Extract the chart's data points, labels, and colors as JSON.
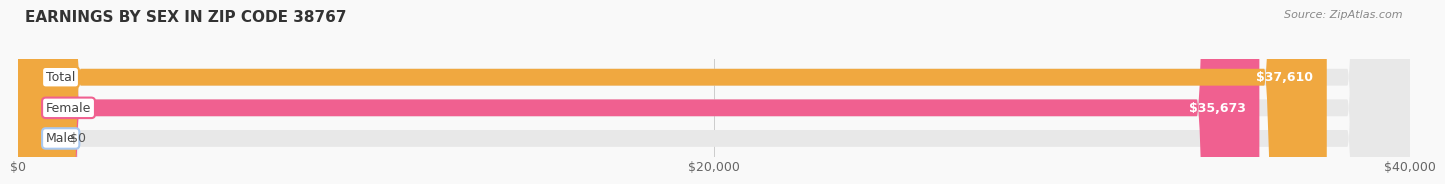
{
  "title": "EARNINGS BY SEX IN ZIP CODE 38767",
  "source": "Source: ZipAtlas.com",
  "categories": [
    "Male",
    "Female",
    "Total"
  ],
  "values": [
    0,
    35673,
    37610
  ],
  "bar_colors": [
    "#a8c8f0",
    "#f06090",
    "#f0a840"
  ],
  "bar_bg_color": "#e8e8e8",
  "xlim": [
    0,
    40000
  ],
  "xticks": [
    0,
    20000,
    40000
  ],
  "xtick_labels": [
    "$0",
    "$20,000",
    "$40,000"
  ],
  "value_labels": [
    "$0",
    "$35,673",
    "$37,610"
  ],
  "bar_height": 0.55,
  "title_fontsize": 11,
  "tick_fontsize": 9,
  "label_fontsize": 9,
  "value_fontsize": 9,
  "source_fontsize": 8,
  "background_color": "#f9f9f9"
}
